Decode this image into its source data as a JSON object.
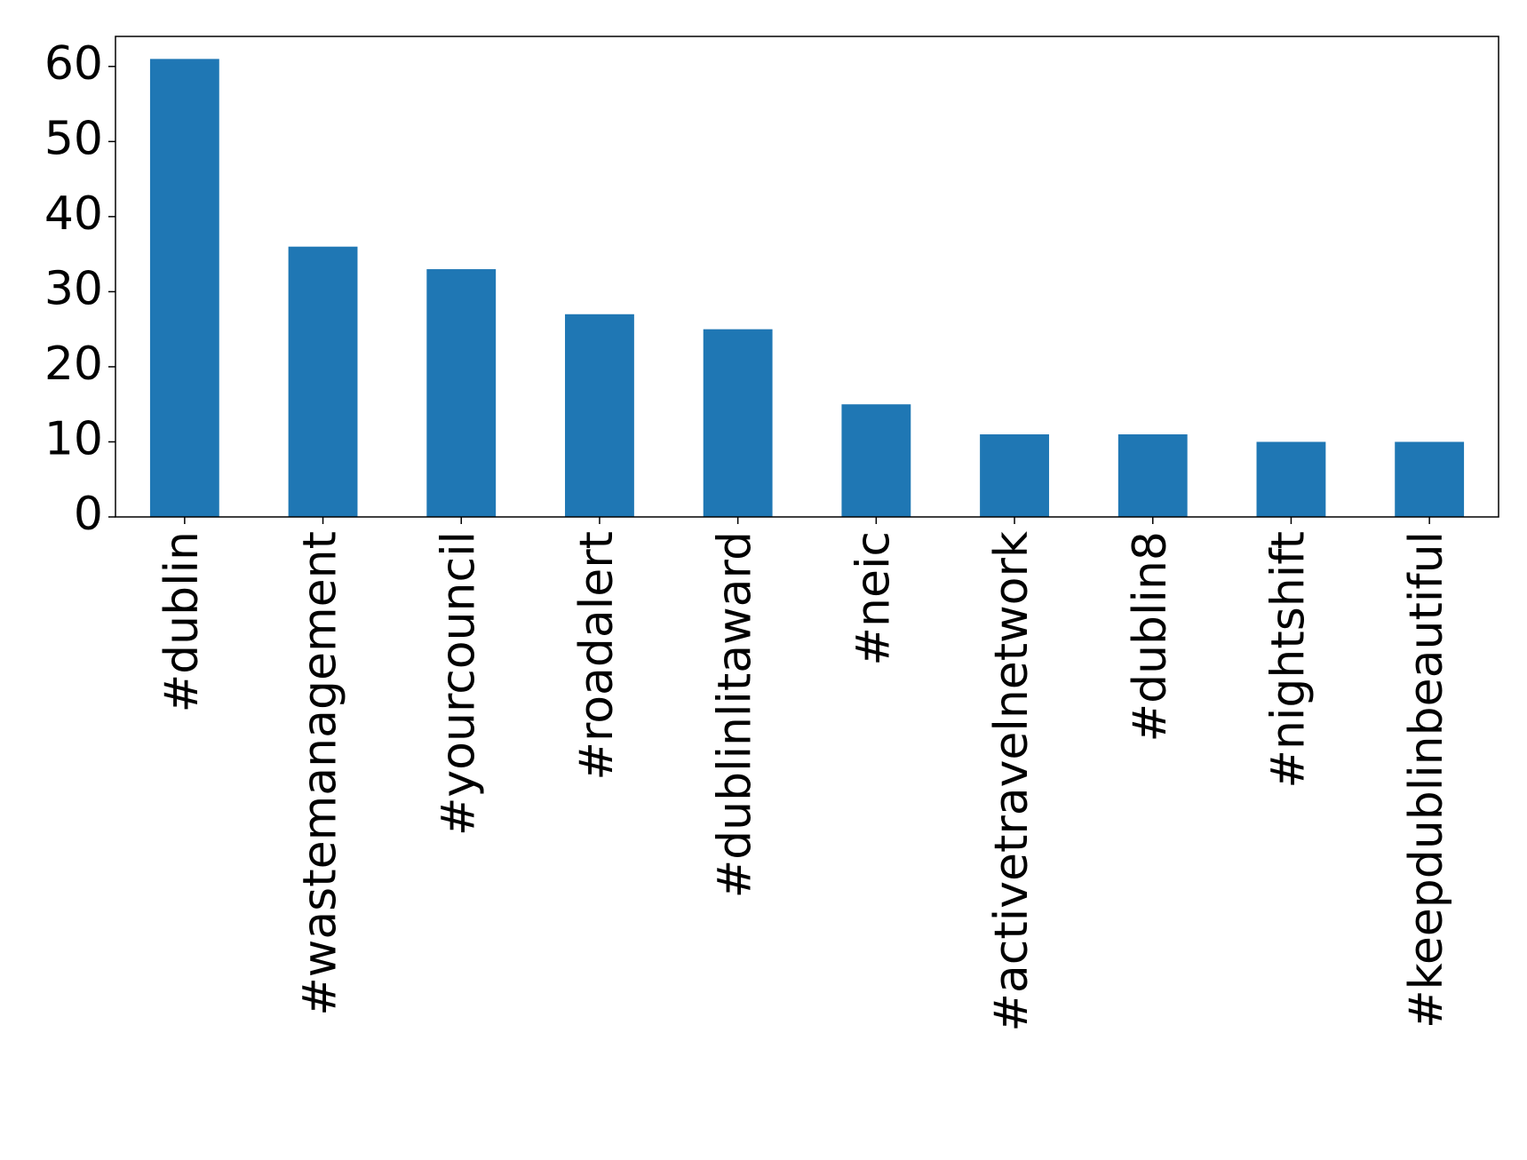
{
  "chart_data": {
    "type": "bar",
    "categories": [
      "#dublin",
      "#wastemanagement",
      "#yourcouncil",
      "#roadalert",
      "#dublinlitaward",
      "#neic",
      "#activetravelnetwork",
      "#dublin8",
      "#nightshift",
      "#keepdublinbeautiful"
    ],
    "values": [
      61,
      36,
      33,
      27,
      25,
      15,
      11,
      11,
      10,
      10
    ],
    "color": "#1f77b4",
    "ylim": [
      0,
      64
    ],
    "yticks": [
      0,
      10,
      20,
      30,
      40,
      50,
      60
    ],
    "grid": false
  }
}
